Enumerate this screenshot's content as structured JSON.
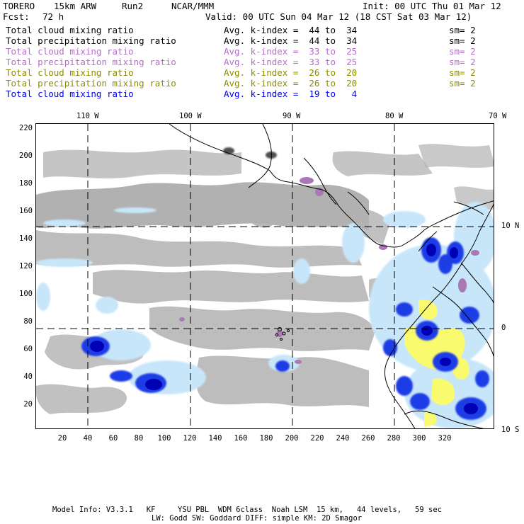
{
  "header": {
    "model": "TORERO",
    "resolution": "15km ARW",
    "run": "Run2",
    "org": "NCAR/MMM",
    "init": "Init: 00 UTC Thu 01 Mar 12",
    "fcst_label": "Fcst:",
    "fcst_value": "72 h",
    "valid": "Valid: 00 UTC Sun 04 Mar 12 (18 CST Sat 03 Mar 12)"
  },
  "legend": [
    {
      "field": "Total cloud mixing ratio",
      "index": "Avg. k-index =  44 to  34",
      "sm": "sm= 2",
      "color": "#000000"
    },
    {
      "field": "Total precipitation mixing ratio",
      "index": "Avg. k-index =  44 to  34",
      "sm": "sm= 2",
      "color": "#000000"
    },
    {
      "field": "Total cloud mixing ratio",
      "index": "Avg. k-index =  33 to  25",
      "sm": "sm= 2",
      "color": "#b46ec8"
    },
    {
      "field": "Total precipitation mixing ratio",
      "index": "Avg. k-index =  33 to  25",
      "sm": "sm= 2",
      "color": "#b46ec8"
    },
    {
      "field": "Total cloud mixing ratio",
      "index": "Avg. k-index =  26 to  20",
      "sm": "sm= 2",
      "color": "#8c8c00"
    },
    {
      "field": "Total precipitation mixing ratio",
      "index": "Avg. k-index =  26 to  20",
      "sm": "sm= 2",
      "color": "#8c8c00"
    },
    {
      "field": "Total cloud mixing ratio",
      "index": "Avg. k-index =  19 to   4",
      "sm": "",
      "color": "#0000e6"
    }
  ],
  "map": {
    "top_longitudes": [
      "110 W",
      "100 W",
      "90 W",
      "80 W",
      "70 W"
    ],
    "right_latitudes": [
      "10 N",
      "0",
      "10 S"
    ],
    "y_ticks": [
      "220",
      "200",
      "180",
      "160",
      "140",
      "120",
      "100",
      "80",
      "60",
      "40",
      "20"
    ],
    "x_ticks": [
      "20",
      "40",
      "60",
      "80",
      "100",
      "120",
      "140",
      "160",
      "180",
      "200",
      "220",
      "240",
      "260",
      "280",
      "300",
      "320"
    ],
    "colors": {
      "gray_cloud": "#a9a9a9",
      "light_blue": "#c8e6fa",
      "blue": "#1428dc",
      "dark_blue": "#0000b4",
      "yellow": "#fafa6e",
      "purple": "#aa78b4",
      "coastline": "#000000"
    }
  },
  "footer": {
    "line1": "Model Info: V3.3.1   KF     YSU PBL  WDM 6class  Noah LSM  15 km,   44 levels,   59 sec",
    "line2": "LW: Godd SW: Goddard DIFF: simple KM: 2D Smagor"
  }
}
